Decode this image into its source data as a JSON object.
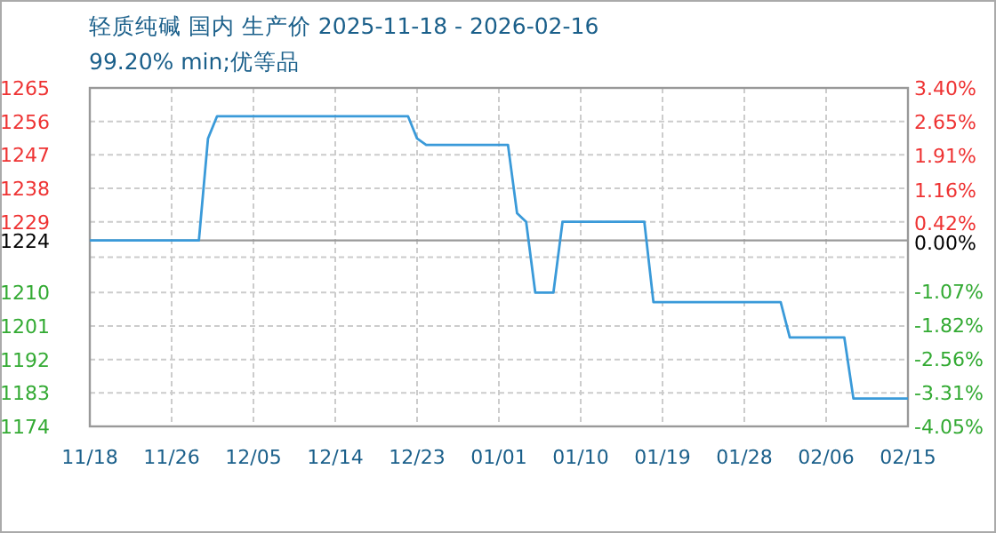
{
  "chart_data": {
    "type": "line",
    "title": "轻质纯碱 国内 生产价 2025-11-18 - 2026-02-16",
    "subtitle": "99.20% min;优等品",
    "x": [
      "2025-11-18",
      "2025-11-30",
      "2025-12-01",
      "2025-12-02",
      "2025-12-23",
      "2025-12-24",
      "2025-12-25",
      "2026-01-03",
      "2026-01-04",
      "2026-01-05",
      "2026-01-06",
      "2026-01-08",
      "2026-01-09",
      "2026-01-18",
      "2026-01-19",
      "2026-02-02",
      "2026-02-03",
      "2026-02-09",
      "2026-02-10",
      "2026-02-16"
    ],
    "series": [
      {
        "color": "#3a9ad9",
        "values": [
          1224,
          1224,
          1251.4,
          1257.4,
          1257.4,
          1251.4,
          1249.7,
          1249.7,
          1231.3,
          1229,
          1210,
          1210,
          1229,
          1229,
          1207.4,
          1207.4,
          1197.9,
          1197.9,
          1181.5,
          1181.5
        ]
      }
    ],
    "xlim": [
      "2025-11-18",
      "2026-02-16"
    ],
    "xticks": [
      {
        "value": "2025-11-18",
        "label": "11/18"
      },
      {
        "value": "2025-11-27",
        "label": "11/26"
      },
      {
        "value": "2025-12-06",
        "label": "12/05"
      },
      {
        "value": "2025-12-15",
        "label": "12/14"
      },
      {
        "value": "2025-12-24",
        "label": "12/23"
      },
      {
        "value": "2026-01-02",
        "label": "01/01"
      },
      {
        "value": "2026-01-11",
        "label": "01/10"
      },
      {
        "value": "2026-01-20",
        "label": "01/19"
      },
      {
        "value": "2026-01-29",
        "label": "01/28"
      },
      {
        "value": "2026-02-07",
        "label": "02/06"
      },
      {
        "value": "2026-02-16",
        "label": "02/15"
      }
    ],
    "ylim": [
      1174,
      1265
    ],
    "yticks": [
      1174,
      1183,
      1192,
      1201,
      1210,
      {
        "value": 1219.5,
        "label": null
      },
      1229,
      1238,
      1247,
      1256,
      1265
    ],
    "y2lim": [
      -4.05,
      3.4
    ],
    "y2ticks": [
      {
        "value": -4.05,
        "label": "-4.05%"
      },
      {
        "value": -3.31,
        "label": "-3.31%"
      },
      {
        "value": -2.56,
        "label": "-2.56%"
      },
      {
        "value": -1.82,
        "label": "-1.82%"
      },
      {
        "value": -1.07,
        "label": "-1.07%"
      },
      {
        "value": 0,
        "label": "0.00%"
      },
      {
        "value": 0.42,
        "label": "0.42%"
      },
      {
        "value": 1.16,
        "label": "1.16%"
      },
      {
        "value": 1.91,
        "label": "1.91%"
      },
      {
        "value": 2.65,
        "label": "2.65%"
      },
      {
        "value": 3.4,
        "label": "3.40%"
      }
    ],
    "ref_lines": [
      {
        "axis": "y",
        "value": 1224,
        "label": "1224",
        "color": "#999999"
      }
    ],
    "grid": true,
    "marker": "none",
    "line_style": "solid"
  }
}
